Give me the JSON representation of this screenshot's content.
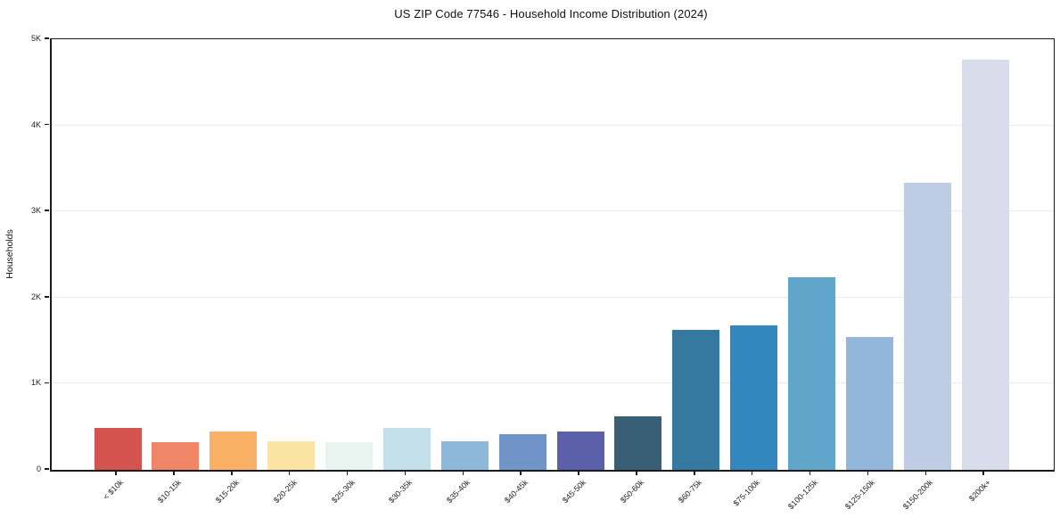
{
  "chart_data": {
    "type": "bar",
    "title": "US ZIP Code 77546 - Household Income Distribution (2024)",
    "xlabel": "",
    "ylabel": "Households",
    "ylim": [
      0,
      5000
    ],
    "ytick_values": [
      0,
      1000,
      2000,
      3000,
      4000,
      5000
    ],
    "ytick_labels": [
      "0",
      "1K",
      "2K",
      "3K",
      "4K",
      "5K"
    ],
    "grid": true,
    "legend_position": "none",
    "categories": [
      "< $10k",
      "$10-15k",
      "$15-20k",
      "$20-25k",
      "$25-30k",
      "$30-35k",
      "$35-40k",
      "$40-45k",
      "$45-50k",
      "$50-60k",
      "$60-75k",
      "$75-100k",
      "$100-125k",
      "$125-150k",
      "$150-200k",
      "$200k+"
    ],
    "values": [
      485,
      320,
      445,
      335,
      325,
      490,
      330,
      410,
      450,
      620,
      1630,
      1680,
      2240,
      1540,
      3330,
      4760
    ],
    "bar_colors": [
      "#d5534e",
      "#f08568",
      "#fab166",
      "#fae3a3",
      "#e9f4f0",
      "#c3e0ea",
      "#8db8da",
      "#7093c8",
      "#5c5fa9",
      "#395f76",
      "#3579a1",
      "#3287bf",
      "#60a6ca",
      "#93b7da",
      "#bfcde4",
      "#d9dcea"
    ],
    "axis_color": "#1a1a1a",
    "gridline_color": "#e9e9ee"
  }
}
